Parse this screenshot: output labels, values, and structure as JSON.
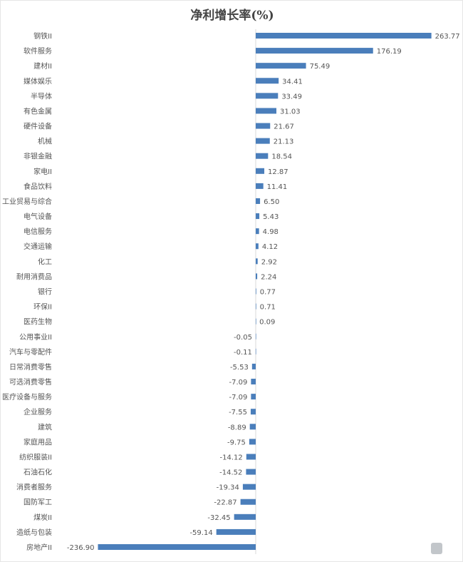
{
  "chart_data": {
    "type": "bar",
    "orientation": "horizontal",
    "title": "净利增长率(%)",
    "xlabel": "",
    "ylabel": "",
    "grid": false,
    "bar_color": "#4a7ebb",
    "categories": [
      "钢铁II",
      "软件服务",
      "建材II",
      "媒体娱乐",
      "半导体",
      "有色金属",
      "硬件设备",
      "机械",
      "非银金融",
      "家电II",
      "食品饮料",
      "工业贸易与综合",
      "电气设备",
      "电信服务",
      "交通运输",
      "化工",
      "耐用消费品",
      "银行",
      "环保II",
      "医药生物",
      "公用事业II",
      "汽车与零配件",
      "日常消费零售",
      "可选消费零售",
      "医疗设备与服务",
      "企业服务",
      "建筑",
      "家庭用品",
      "纺织服装II",
      "石油石化",
      "消费者服务",
      "国防军工",
      "煤炭II",
      "造纸与包装",
      "房地产II"
    ],
    "values": [
      263.77,
      176.19,
      75.49,
      34.41,
      33.49,
      31.03,
      21.67,
      21.13,
      18.54,
      12.87,
      11.41,
      6.5,
      5.43,
      4.98,
      4.12,
      2.92,
      2.24,
      0.77,
      0.71,
      0.09,
      -0.05,
      -0.11,
      -5.53,
      -7.09,
      -7.09,
      -7.55,
      -8.89,
      -9.75,
      -14.12,
      -14.52,
      -19.34,
      -22.87,
      -32.45,
      -59.14,
      -236.9
    ],
    "labels": [
      "263.77",
      "176.19",
      "75.49",
      "34.41",
      "33.49",
      "31.03",
      "21.67",
      "21.13",
      "18.54",
      "12.87",
      "11.41",
      "6.50",
      "5.43",
      "4.98",
      "4.12",
      "2.92",
      "2.24",
      "0.77",
      "0.71",
      "0.09",
      "-0.05",
      "-0.11",
      "-5.53",
      "-7.09",
      "-7.09",
      "-7.55",
      "-8.89",
      "-9.75",
      "-14.12",
      "-14.52",
      "-19.34",
      "-22.87",
      "-32.45",
      "-59.14",
      "-236.90"
    ]
  }
}
